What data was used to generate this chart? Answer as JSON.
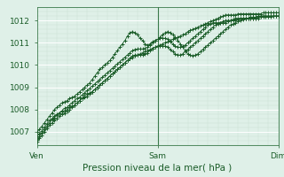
{
  "bg_color": "#dff0e8",
  "grid_color_major": "#ffffff",
  "grid_color_minor": "#c8e0d4",
  "line_color": "#1a5c28",
  "xlabel": "Pression niveau de la mer( hPa )",
  "xtick_labels": [
    "Ven",
    "Sam",
    "Dim"
  ],
  "xtick_positions": [
    0,
    48,
    96
  ],
  "ylim": [
    1006.4,
    1012.6
  ],
  "yticks": [
    1007,
    1008,
    1009,
    1010,
    1011,
    1012
  ],
  "xlabel_color": "#1a5c28",
  "tick_color": "#1a5c28",
  "series1_x": [
    0,
    1,
    2,
    3,
    4,
    5,
    6,
    7,
    8,
    9,
    10,
    11,
    12,
    13,
    14,
    15,
    16,
    17,
    18,
    19,
    20,
    21,
    22,
    23,
    24,
    25,
    26,
    27,
    28,
    29,
    30,
    31,
    32,
    33,
    34,
    35,
    36,
    37,
    38,
    39,
    40,
    41,
    42,
    43,
    44,
    45,
    46,
    47,
    48,
    49,
    50,
    51,
    52,
    53,
    54,
    55,
    56,
    57,
    58,
    59,
    60,
    61,
    62,
    63,
    64,
    65,
    66,
    67,
    68,
    69,
    70,
    71,
    72,
    73,
    74,
    75,
    76,
    77,
    78,
    79,
    80,
    81,
    82,
    83,
    84,
    85,
    86,
    87,
    88,
    89,
    90,
    91,
    92,
    93,
    94,
    95,
    96
  ],
  "series1": [
    1006.8,
    1006.9,
    1007.05,
    1007.2,
    1007.35,
    1007.5,
    1007.6,
    1007.7,
    1007.8,
    1007.85,
    1007.9,
    1007.95,
    1008.0,
    1008.1,
    1008.15,
    1008.2,
    1008.3,
    1008.4,
    1008.5,
    1008.6,
    1008.7,
    1008.75,
    1008.8,
    1008.9,
    1009.0,
    1009.1,
    1009.2,
    1009.3,
    1009.4,
    1009.5,
    1009.6,
    1009.7,
    1009.8,
    1009.9,
    1010.0,
    1010.1,
    1010.2,
    1010.3,
    1010.35,
    1010.4,
    1010.45,
    1010.5,
    1010.55,
    1010.6,
    1010.65,
    1010.7,
    1010.75,
    1010.8,
    1010.85,
    1010.9,
    1010.95,
    1011.0,
    1011.05,
    1011.1,
    1011.15,
    1011.2,
    1011.25,
    1011.3,
    1011.35,
    1011.4,
    1011.5,
    1011.55,
    1011.6,
    1011.65,
    1011.7,
    1011.75,
    1011.8,
    1011.85,
    1011.9,
    1011.95,
    1012.0,
    1012.05,
    1012.1,
    1012.15,
    1012.2,
    1012.25,
    1012.25,
    1012.25,
    1012.25,
    1012.25,
    1012.3,
    1012.3,
    1012.3,
    1012.3,
    1012.3,
    1012.3,
    1012.3,
    1012.3,
    1012.3,
    1012.3,
    1012.35,
    1012.35,
    1012.35,
    1012.35,
    1012.35,
    1012.35,
    1012.35
  ],
  "series2": [
    1007.0,
    1007.1,
    1007.25,
    1007.4,
    1007.55,
    1007.7,
    1007.85,
    1008.0,
    1008.1,
    1008.2,
    1008.3,
    1008.35,
    1008.4,
    1008.5,
    1008.55,
    1008.6,
    1008.7,
    1008.8,
    1008.9,
    1009.0,
    1009.1,
    1009.2,
    1009.35,
    1009.5,
    1009.65,
    1009.8,
    1009.9,
    1010.0,
    1010.1,
    1010.2,
    1010.35,
    1010.5,
    1010.65,
    1010.8,
    1010.95,
    1011.1,
    1011.3,
    1011.45,
    1011.5,
    1011.45,
    1011.35,
    1011.2,
    1011.1,
    1010.95,
    1010.9,
    1010.95,
    1011.05,
    1011.1,
    1011.15,
    1011.25,
    1011.35,
    1011.45,
    1011.5,
    1011.45,
    1011.35,
    1011.25,
    1011.1,
    1010.95,
    1010.8,
    1010.65,
    1010.5,
    1010.45,
    1010.4,
    1010.45,
    1010.5,
    1010.6,
    1010.7,
    1010.8,
    1010.9,
    1011.0,
    1011.1,
    1011.2,
    1011.3,
    1011.4,
    1011.5,
    1011.6,
    1011.7,
    1011.8,
    1011.85,
    1011.9,
    1011.95,
    1012.0,
    1012.05,
    1012.1,
    1012.1,
    1012.1,
    1012.1,
    1012.1,
    1012.1,
    1012.15,
    1012.15,
    1012.15,
    1012.15,
    1012.15,
    1012.2,
    1012.2,
    1012.2
  ],
  "series3": [
    1006.65,
    1006.8,
    1006.95,
    1007.1,
    1007.25,
    1007.4,
    1007.55,
    1007.65,
    1007.75,
    1007.85,
    1007.95,
    1008.05,
    1008.1,
    1008.2,
    1008.3,
    1008.4,
    1008.5,
    1008.55,
    1008.65,
    1008.75,
    1008.85,
    1008.95,
    1009.05,
    1009.15,
    1009.25,
    1009.35,
    1009.45,
    1009.55,
    1009.65,
    1009.75,
    1009.85,
    1009.95,
    1010.05,
    1010.15,
    1010.25,
    1010.35,
    1010.45,
    1010.55,
    1010.65,
    1010.7,
    1010.72,
    1010.72,
    1010.72,
    1010.75,
    1010.8,
    1010.9,
    1011.0,
    1011.1,
    1011.15,
    1011.2,
    1011.2,
    1011.2,
    1011.15,
    1011.05,
    1010.95,
    1010.85,
    1010.8,
    1010.8,
    1010.85,
    1010.9,
    1011.0,
    1011.1,
    1011.2,
    1011.3,
    1011.4,
    1011.5,
    1011.6,
    1011.7,
    1011.8,
    1011.85,
    1011.9,
    1011.9,
    1011.9,
    1011.9,
    1011.95,
    1012.0,
    1012.0,
    1012.0,
    1012.05,
    1012.1,
    1012.1,
    1012.1,
    1012.1,
    1012.1,
    1012.1,
    1012.15,
    1012.15,
    1012.15,
    1012.2,
    1012.2,
    1012.2,
    1012.2,
    1012.2,
    1012.2,
    1012.2,
    1012.2,
    1012.2
  ],
  "series4": [
    1006.55,
    1006.7,
    1006.85,
    1007.0,
    1007.15,
    1007.3,
    1007.4,
    1007.5,
    1007.6,
    1007.7,
    1007.8,
    1007.85,
    1007.9,
    1008.0,
    1008.1,
    1008.2,
    1008.3,
    1008.4,
    1008.5,
    1008.55,
    1008.6,
    1008.7,
    1008.8,
    1008.9,
    1009.0,
    1009.1,
    1009.2,
    1009.3,
    1009.4,
    1009.5,
    1009.6,
    1009.7,
    1009.8,
    1009.9,
    1010.0,
    1010.1,
    1010.2,
    1010.3,
    1010.4,
    1010.45,
    1010.45,
    1010.45,
    1010.45,
    1010.5,
    1010.55,
    1010.65,
    1010.75,
    1010.8,
    1010.85,
    1010.85,
    1010.85,
    1010.85,
    1010.8,
    1010.7,
    1010.6,
    1010.5,
    1010.45,
    1010.45,
    1010.5,
    1010.6,
    1010.7,
    1010.8,
    1010.9,
    1011.0,
    1011.1,
    1011.2,
    1011.3,
    1011.4,
    1011.5,
    1011.6,
    1011.7,
    1011.8,
    1011.85,
    1011.9,
    1011.9,
    1011.9,
    1011.95,
    1012.0,
    1012.0,
    1012.0,
    1012.05,
    1012.1,
    1012.1,
    1012.1,
    1012.1,
    1012.1,
    1012.1,
    1012.1,
    1012.15,
    1012.2,
    1012.2,
    1012.2,
    1012.2,
    1012.2,
    1012.2,
    1012.2,
    1012.2
  ],
  "n_points": 97
}
